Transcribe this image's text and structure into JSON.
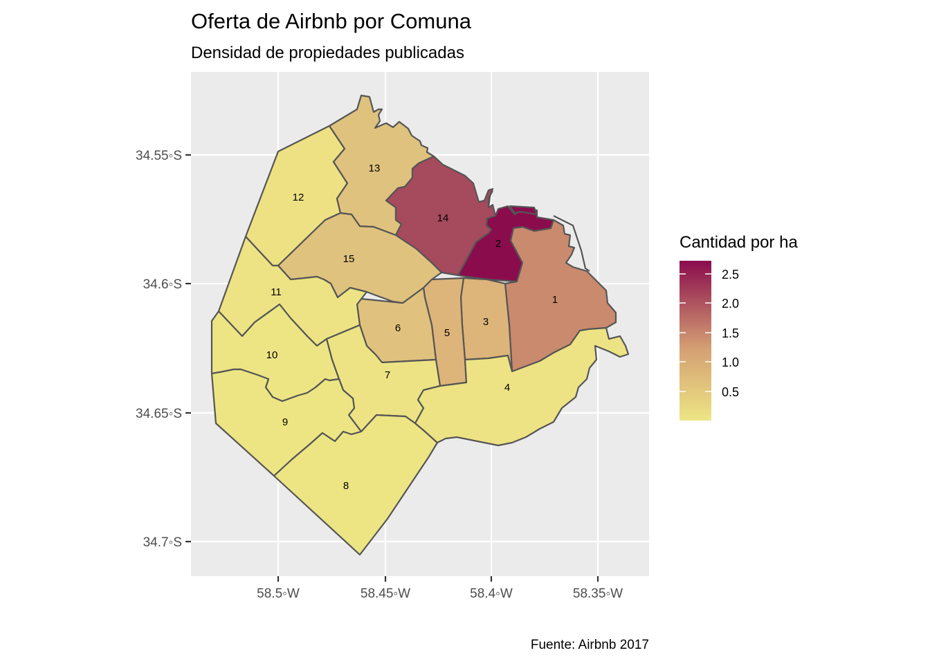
{
  "title": "Oferta de Airbnb por Comuna",
  "subtitle": "Densidad de propiedades publicadas",
  "caption": "Fuente: Airbnb 2017",
  "axes": {
    "x_ticks": [
      "58.5◦W",
      "58.45◦W",
      "58.4◦W",
      "58.35◦W"
    ],
    "y_ticks": [
      "34.55◦S",
      "34.6◦S",
      "34.65◦S",
      "34.7◦S"
    ]
  },
  "legend": {
    "title": "Cantidad por ha",
    "labels": [
      "2.5",
      "2.0",
      "1.5",
      "1.0",
      "0.5"
    ],
    "color_low": "#EDE584",
    "color_mid": "#D4A073",
    "color_high": "#8A0C4D"
  },
  "map": {
    "panel_bg": "#EBEBEB",
    "comunas": [
      {
        "label": "1",
        "color": "#C98A6E",
        "value": 1.2
      },
      {
        "label": "2",
        "color": "#8A0C4D",
        "value": 2.7
      },
      {
        "label": "3",
        "color": "#DDB47A",
        "value": 0.8
      },
      {
        "label": "4",
        "color": "#EDE384",
        "value": 0.05
      },
      {
        "label": "5",
        "color": "#DDB47A",
        "value": 0.8
      },
      {
        "label": "6",
        "color": "#E0C27E",
        "value": 0.6
      },
      {
        "label": "7",
        "color": "#EDE384",
        "value": 0.1
      },
      {
        "label": "8",
        "color": "#EDE584",
        "value": 0.02
      },
      {
        "label": "9",
        "color": "#EDE584",
        "value": 0.03
      },
      {
        "label": "10",
        "color": "#EDE584",
        "value": 0.03
      },
      {
        "label": "11",
        "color": "#EDE384",
        "value": 0.05
      },
      {
        "label": "12",
        "color": "#EDE184",
        "value": 0.1
      },
      {
        "label": "13",
        "color": "#DFC27E",
        "value": 0.7
      },
      {
        "label": "14",
        "color": "#A64A5D",
        "value": 2.0
      },
      {
        "label": "15",
        "color": "#DFC27E",
        "value": 0.7
      }
    ]
  }
}
